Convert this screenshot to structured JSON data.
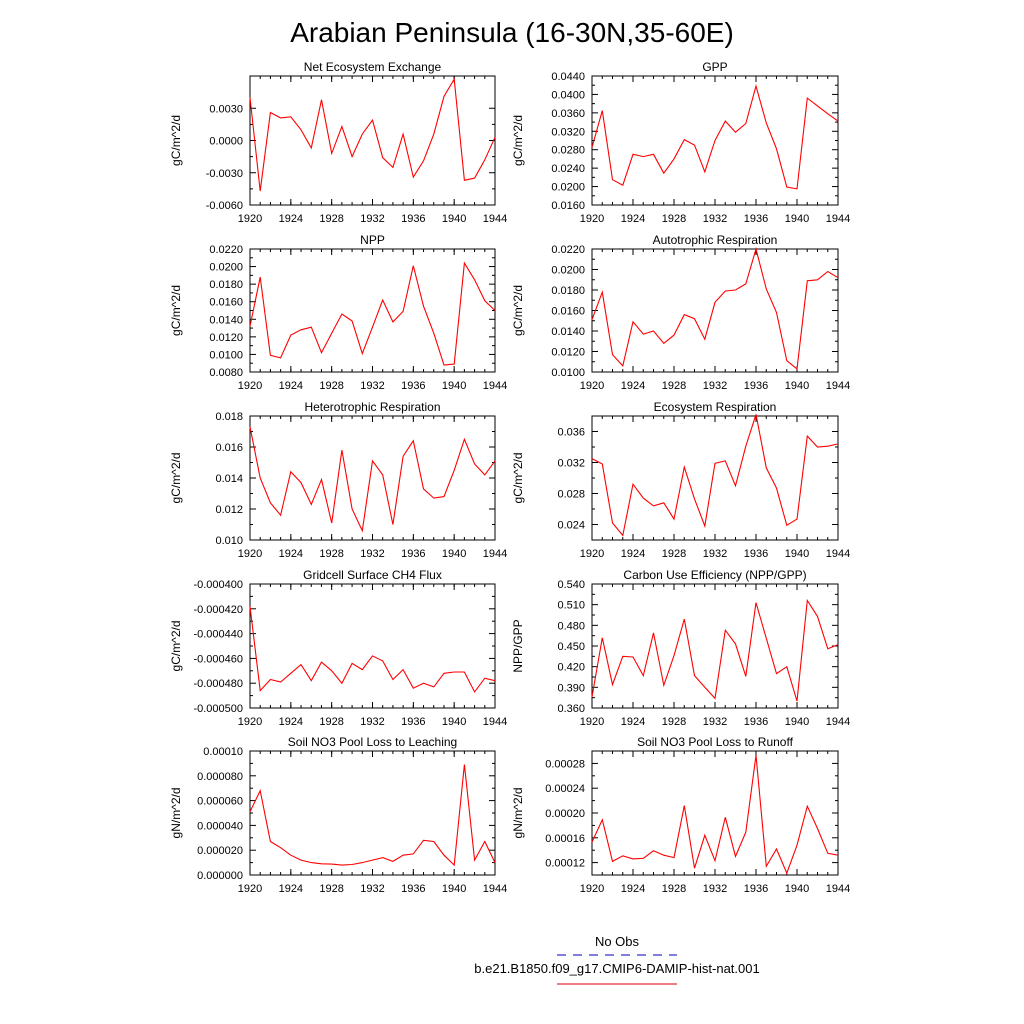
{
  "page": {
    "title": "Arabian Peninsula (16-30N,35-60E)"
  },
  "legend": {
    "obs_label": "No Obs",
    "obs_color": "#3333cc",
    "model_label": "b.e21.B1850.f09_g17.CMIP6-DAMIP-hist-nat.001",
    "model_color": "#e8323c"
  },
  "line_color": "#ff0000",
  "chart_data": [
    {
      "type": "line",
      "title": "Net Ecosystem Exchange",
      "ylabel": "gC/m^2/d",
      "ylim": [
        -0.006,
        0.006
      ],
      "yticks": [
        -0.006,
        -0.003,
        0.0,
        0.003
      ],
      "ytick_labels": [
        "-0.0060",
        "-0.0030",
        "0.0000",
        "0.0030"
      ],
      "xlim": [
        1920,
        1944
      ],
      "xticks": [
        1920,
        1924,
        1928,
        1932,
        1936,
        1940,
        1944
      ],
      "x": [
        1920,
        1921,
        1922,
        1923,
        1924,
        1925,
        1926,
        1927,
        1928,
        1929,
        1930,
        1931,
        1932,
        1933,
        1934,
        1935,
        1936,
        1937,
        1938,
        1939,
        1940,
        1941,
        1942,
        1943,
        1944
      ],
      "values": [
        0.004,
        -0.0047,
        0.0026,
        0.0021,
        0.0022,
        0.001,
        -0.0007,
        0.0038,
        -0.0012,
        0.0013,
        -0.0015,
        0.0006,
        0.0019,
        -0.0016,
        -0.0025,
        0.0006,
        -0.0034,
        -0.0019,
        0.0006,
        0.0041,
        0.0057,
        -0.0037,
        -0.0035,
        -0.0018,
        0.0003
      ]
    },
    {
      "type": "line",
      "title": "GPP",
      "ylabel": "gC/m^2/d",
      "ylim": [
        0.016,
        0.044
      ],
      "yticks": [
        0.016,
        0.02,
        0.024,
        0.028,
        0.032,
        0.036,
        0.04,
        0.044
      ],
      "ytick_labels": [
        "0.0160",
        "0.0200",
        "0.0240",
        "0.0280",
        "0.0320",
        "0.0360",
        "0.0400",
        "0.0440"
      ],
      "xlim": [
        1920,
        1944
      ],
      "xticks": [
        1920,
        1924,
        1928,
        1932,
        1936,
        1940,
        1944
      ],
      "x": [
        1920,
        1921,
        1922,
        1923,
        1924,
        1925,
        1926,
        1927,
        1928,
        1929,
        1930,
        1931,
        1932,
        1933,
        1934,
        1935,
        1936,
        1937,
        1938,
        1939,
        1940,
        1941,
        1942,
        1943,
        1944
      ],
      "values": [
        0.0285,
        0.0365,
        0.0215,
        0.0203,
        0.027,
        0.0265,
        0.027,
        0.0229,
        0.026,
        0.0302,
        0.029,
        0.0232,
        0.03,
        0.0342,
        0.0318,
        0.0337,
        0.0418,
        0.0338,
        0.0282,
        0.0199,
        0.0195,
        0.0392,
        0.0375,
        0.0358,
        0.0342
      ]
    },
    {
      "type": "line",
      "title": "NPP",
      "ylabel": "gC/m^2/d",
      "ylim": [
        0.008,
        0.022
      ],
      "yticks": [
        0.008,
        0.01,
        0.012,
        0.014,
        0.016,
        0.018,
        0.02,
        0.022
      ],
      "ytick_labels": [
        "0.0080",
        "0.0100",
        "0.0120",
        "0.0140",
        "0.0160",
        "0.0180",
        "0.0200",
        "0.0220"
      ],
      "xlim": [
        1920,
        1944
      ],
      "xticks": [
        1920,
        1924,
        1928,
        1932,
        1936,
        1940,
        1944
      ],
      "x": [
        1920,
        1921,
        1922,
        1923,
        1924,
        1925,
        1926,
        1927,
        1928,
        1929,
        1930,
        1931,
        1932,
        1933,
        1934,
        1935,
        1936,
        1937,
        1938,
        1939,
        1940,
        1941,
        1942,
        1943,
        1944
      ],
      "values": [
        0.0132,
        0.0188,
        0.0099,
        0.0096,
        0.0122,
        0.0128,
        0.0131,
        0.0102,
        0.0124,
        0.0146,
        0.0138,
        0.0101,
        0.0131,
        0.0162,
        0.0137,
        0.0149,
        0.0201,
        0.0155,
        0.0124,
        0.0088,
        0.0089,
        0.0204,
        0.0185,
        0.0161,
        0.015
      ]
    },
    {
      "type": "line",
      "title": "Autotrophic Respiration",
      "ylabel": "gC/m^2/d",
      "ylim": [
        0.01,
        0.022
      ],
      "yticks": [
        0.01,
        0.012,
        0.014,
        0.016,
        0.018,
        0.02,
        0.022
      ],
      "ytick_labels": [
        "0.0100",
        "0.0120",
        "0.0140",
        "0.0160",
        "0.0180",
        "0.0200",
        "0.0220"
      ],
      "xlim": [
        1920,
        1944
      ],
      "xticks": [
        1920,
        1924,
        1928,
        1932,
        1936,
        1940,
        1944
      ],
      "x": [
        1920,
        1921,
        1922,
        1923,
        1924,
        1925,
        1926,
        1927,
        1928,
        1929,
        1930,
        1931,
        1932,
        1933,
        1934,
        1935,
        1936,
        1937,
        1938,
        1939,
        1940,
        1941,
        1942,
        1943,
        1944
      ],
      "values": [
        0.0151,
        0.0178,
        0.0117,
        0.0106,
        0.0149,
        0.0137,
        0.014,
        0.0128,
        0.0136,
        0.0156,
        0.0152,
        0.0132,
        0.0168,
        0.0179,
        0.018,
        0.0186,
        0.022,
        0.0181,
        0.0158,
        0.0111,
        0.0103,
        0.0189,
        0.019,
        0.0198,
        0.0192
      ]
    },
    {
      "type": "line",
      "title": "Heterotrophic Respiration",
      "ylabel": "gC/m^2/d",
      "ylim": [
        0.01,
        0.018
      ],
      "yticks": [
        0.01,
        0.012,
        0.014,
        0.016,
        0.018
      ],
      "ytick_labels": [
        "0.010",
        "0.012",
        "0.014",
        "0.016",
        "0.018"
      ],
      "xlim": [
        1920,
        1944
      ],
      "xticks": [
        1920,
        1924,
        1928,
        1932,
        1936,
        1940,
        1944
      ],
      "x": [
        1920,
        1921,
        1922,
        1923,
        1924,
        1925,
        1926,
        1927,
        1928,
        1929,
        1930,
        1931,
        1932,
        1933,
        1934,
        1935,
        1936,
        1937,
        1938,
        1939,
        1940,
        1941,
        1942,
        1943,
        1944
      ],
      "values": [
        0.0173,
        0.014,
        0.0124,
        0.0116,
        0.0144,
        0.0137,
        0.0123,
        0.0139,
        0.0111,
        0.0158,
        0.012,
        0.0106,
        0.0151,
        0.0142,
        0.011,
        0.0154,
        0.0164,
        0.0133,
        0.0127,
        0.0128,
        0.0145,
        0.0165,
        0.0149,
        0.0142,
        0.0151
      ]
    },
    {
      "type": "line",
      "title": "Ecosystem Respiration",
      "ylabel": "gC/m^2/d",
      "ylim": [
        0.022,
        0.038
      ],
      "yticks": [
        0.024,
        0.028,
        0.032,
        0.036
      ],
      "ytick_labels": [
        "0.024",
        "0.028",
        "0.032",
        "0.036"
      ],
      "xlim": [
        1920,
        1944
      ],
      "xticks": [
        1920,
        1924,
        1928,
        1932,
        1936,
        1940,
        1944
      ],
      "x": [
        1920,
        1921,
        1922,
        1923,
        1924,
        1925,
        1926,
        1927,
        1928,
        1929,
        1930,
        1931,
        1932,
        1933,
        1934,
        1935,
        1936,
        1937,
        1938,
        1939,
        1940,
        1941,
        1942,
        1943,
        1944
      ],
      "values": [
        0.0325,
        0.0318,
        0.0242,
        0.0226,
        0.0292,
        0.0274,
        0.0264,
        0.0268,
        0.0247,
        0.0314,
        0.0273,
        0.0238,
        0.0319,
        0.0322,
        0.029,
        0.0341,
        0.0382,
        0.0313,
        0.0287,
        0.0239,
        0.0247,
        0.0354,
        0.034,
        0.0341,
        0.0344
      ]
    },
    {
      "type": "line",
      "title": "Gridcell Surface CH4 Flux",
      "ylabel": "gC/m^2/d",
      "ylim": [
        -0.0005,
        -0.0004
      ],
      "yticks": [
        -0.0005,
        -0.00048,
        -0.00046,
        -0.00044,
        -0.00042,
        -0.0004
      ],
      "ytick_labels": [
        "-0.000500",
        "-0.000480",
        "-0.000460",
        "-0.000440",
        "-0.000420",
        "-0.000400"
      ],
      "xlim": [
        1920,
        1944
      ],
      "xticks": [
        1920,
        1924,
        1928,
        1932,
        1936,
        1940,
        1944
      ],
      "x": [
        1920,
        1921,
        1922,
        1923,
        1924,
        1925,
        1926,
        1927,
        1928,
        1929,
        1930,
        1931,
        1932,
        1933,
        1934,
        1935,
        1936,
        1937,
        1938,
        1939,
        1940,
        1941,
        1942,
        1943,
        1944
      ],
      "values": [
        -0.000418,
        -0.000486,
        -0.000477,
        -0.000479,
        -0.000472,
        -0.000465,
        -0.000478,
        -0.000463,
        -0.00047,
        -0.00048,
        -0.000464,
        -0.000469,
        -0.000458,
        -0.000462,
        -0.000477,
        -0.000469,
        -0.000484,
        -0.00048,
        -0.000483,
        -0.000472,
        -0.000471,
        -0.000471,
        -0.000487,
        -0.000476,
        -0.000478
      ]
    },
    {
      "type": "line",
      "title": "Carbon Use Efficiency (NPP/GPP)",
      "ylabel": "NPP/GPP",
      "ylim": [
        0.36,
        0.54
      ],
      "yticks": [
        0.36,
        0.39,
        0.42,
        0.45,
        0.48,
        0.51,
        0.54
      ],
      "ytick_labels": [
        "0.360",
        "0.390",
        "0.420",
        "0.450",
        "0.480",
        "0.510",
        "0.540"
      ],
      "xlim": [
        1920,
        1944
      ],
      "xticks": [
        1920,
        1924,
        1928,
        1932,
        1936,
        1940,
        1944
      ],
      "x": [
        1920,
        1921,
        1922,
        1923,
        1924,
        1925,
        1926,
        1927,
        1928,
        1929,
        1930,
        1931,
        1932,
        1933,
        1934,
        1935,
        1936,
        1937,
        1938,
        1939,
        1940,
        1941,
        1942,
        1943,
        1944
      ],
      "values": [
        0.376,
        0.462,
        0.394,
        0.435,
        0.434,
        0.407,
        0.469,
        0.393,
        0.436,
        0.489,
        0.407,
        0.39,
        0.374,
        0.473,
        0.453,
        0.406,
        0.513,
        0.461,
        0.41,
        0.42,
        0.37,
        0.516,
        0.493,
        0.446,
        0.452
      ]
    },
    {
      "type": "line",
      "title": "Soil NO3 Pool Loss to Leaching",
      "ylabel": "gN/m^2/d",
      "ylim": [
        0.0,
        0.0001
      ],
      "yticks": [
        0.0,
        2e-05,
        4e-05,
        6e-05,
        8e-05,
        0.0001
      ],
      "ytick_labels": [
        "0.000000",
        "0.000020",
        "0.000040",
        "0.000060",
        "0.000080",
        "0.00010"
      ],
      "xlim": [
        1920,
        1944
      ],
      "xticks": [
        1920,
        1924,
        1928,
        1932,
        1936,
        1940,
        1944
      ],
      "x": [
        1920,
        1921,
        1922,
        1923,
        1924,
        1925,
        1926,
        1927,
        1928,
        1929,
        1930,
        1931,
        1932,
        1933,
        1934,
        1935,
        1936,
        1937,
        1938,
        1939,
        1940,
        1941,
        1942,
        1943,
        1944
      ],
      "values": [
        5.1e-05,
        6.8e-05,
        2.7e-05,
        2.2e-05,
        1.6e-05,
        1.2e-05,
        1e-05,
        9e-06,
        8.8e-06,
        8e-06,
        8.5e-06,
        1e-05,
        1.2e-05,
        1.4e-05,
        1.1e-05,
        1.6e-05,
        1.7e-05,
        2.8e-05,
        2.7e-05,
        1.6e-05,
        8e-06,
        8.9e-05,
        1.2e-05,
        2.7e-05,
        1e-05
      ]
    },
    {
      "type": "line",
      "title": "Soil NO3 Pool Loss to Runoff",
      "ylabel": "gN/m^2/d",
      "ylim": [
        0.0001,
        0.0003
      ],
      "yticks": [
        0.00012,
        0.00016,
        0.0002,
        0.00024,
        0.00028
      ],
      "ytick_labels": [
        "0.00012",
        "0.00016",
        "0.00020",
        "0.00024",
        "0.00028"
      ],
      "xlim": [
        1920,
        1944
      ],
      "xticks": [
        1920,
        1924,
        1928,
        1932,
        1936,
        1940,
        1944
      ],
      "x": [
        1920,
        1921,
        1922,
        1923,
        1924,
        1925,
        1926,
        1927,
        1928,
        1929,
        1930,
        1931,
        1932,
        1933,
        1934,
        1935,
        1936,
        1937,
        1938,
        1939,
        1940,
        1941,
        1942,
        1943,
        1944
      ],
      "values": [
        0.000153,
        0.000189,
        0.000122,
        0.000131,
        0.000126,
        0.000127,
        0.000139,
        0.000132,
        0.000128,
        0.000212,
        0.000111,
        0.000164,
        0.000123,
        0.000193,
        0.00013,
        0.000169,
        0.000293,
        0.000114,
        0.000142,
        0.000103,
        0.000148,
        0.000211,
        0.000175,
        0.000135,
        0.000132
      ]
    }
  ]
}
